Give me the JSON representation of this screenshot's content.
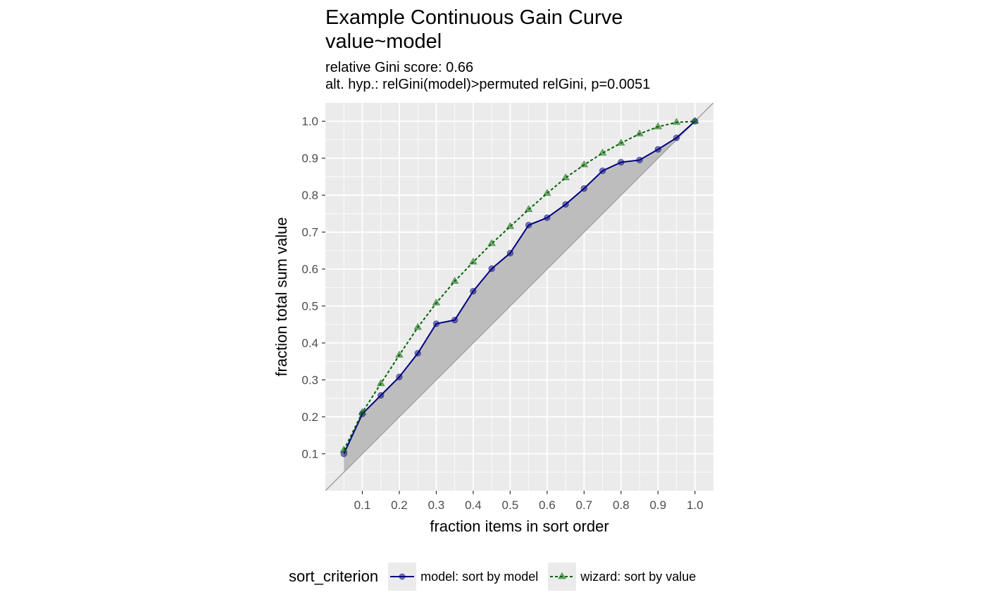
{
  "chart_data": {
    "type": "line",
    "title": "Example Continuous Gain Curve",
    "title_line2": "value~model",
    "subtitle_line1": "relative Gini score: 0.66",
    "subtitle_line2": "alt. hyp.: relGini(model)>permuted relGini, p=0.0051",
    "xlabel": "fraction items in sort order",
    "ylabel": "fraction total sum value",
    "xlim": [
      0.0,
      1.05
    ],
    "ylim": [
      0.0,
      1.05
    ],
    "x_ticks": [
      0.1,
      0.2,
      0.3,
      0.4,
      0.5,
      0.6,
      0.7,
      0.8,
      0.9,
      1.0
    ],
    "x_tick_labels": [
      "0.1",
      "0.2",
      "0.3",
      "0.4",
      "0.5",
      "0.6",
      "0.7",
      "0.8",
      "0.9",
      "1.0"
    ],
    "y_ticks": [
      0.1,
      0.2,
      0.3,
      0.4,
      0.5,
      0.6,
      0.7,
      0.8,
      0.9,
      1.0
    ],
    "y_tick_labels": [
      "0.1",
      "0.2",
      "0.3",
      "0.4",
      "0.5",
      "0.6",
      "0.7",
      "0.8",
      "0.9",
      "1.0"
    ],
    "x": [
      0.05,
      0.1,
      0.15,
      0.2,
      0.25,
      0.3,
      0.35,
      0.4,
      0.45,
      0.5,
      0.55,
      0.6,
      0.65,
      0.7,
      0.75,
      0.8,
      0.85,
      0.9,
      0.95,
      1.0
    ],
    "series": [
      {
        "name": "model: sort by model",
        "color": "#000080",
        "line_style": "solid",
        "marker": "circle",
        "values": [
          0.1,
          0.208,
          0.258,
          0.308,
          0.372,
          0.452,
          0.462,
          0.54,
          0.601,
          0.643,
          0.719,
          0.739,
          0.775,
          0.818,
          0.866,
          0.889,
          0.895,
          0.924,
          0.955,
          1.0
        ]
      },
      {
        "name": "wizard: sort by value",
        "color": "#006400",
        "line_style": "dashed",
        "marker": "triangle",
        "values": [
          0.11,
          0.212,
          0.29,
          0.367,
          0.442,
          0.508,
          0.567,
          0.619,
          0.669,
          0.715,
          0.761,
          0.805,
          0.847,
          0.882,
          0.914,
          0.941,
          0.966,
          0.985,
          0.997,
          1.0
        ]
      }
    ],
    "reference_line": "y = x",
    "shaded_region": "between model curve and y = x",
    "grid": true,
    "legend_title": "sort_criterion",
    "legend_position": "bottom",
    "colors": {
      "panel_background": "#ebebeb",
      "grid": "#ffffff",
      "shade": "#bdbdbd",
      "reference_line": "#a6a6a6"
    }
  }
}
